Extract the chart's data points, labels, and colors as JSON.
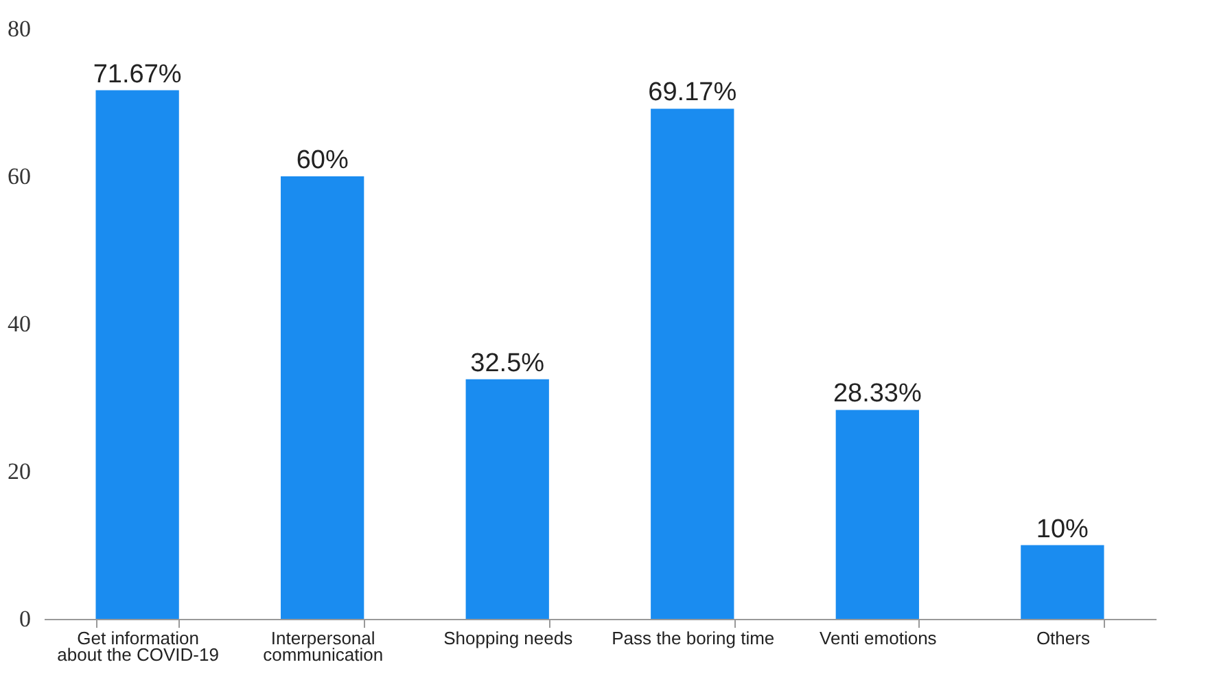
{
  "chart_data": {
    "type": "bar",
    "categories": [
      "Get information about the COVID-19",
      "Interpersonal communication",
      "Shopping needs",
      "Pass the boring time",
      "Venti emotions",
      "Others"
    ],
    "values": [
      71.67,
      60,
      32.5,
      69.17,
      28.33,
      10
    ],
    "value_labels": [
      "71.67%",
      "60%",
      "32.5%",
      "69.17%",
      "28.33%",
      "10%"
    ],
    "color": "#1a8cf0",
    "ylim": [
      0,
      80
    ],
    "yticks": [
      0,
      20,
      40,
      60,
      80
    ],
    "grid": false
  }
}
